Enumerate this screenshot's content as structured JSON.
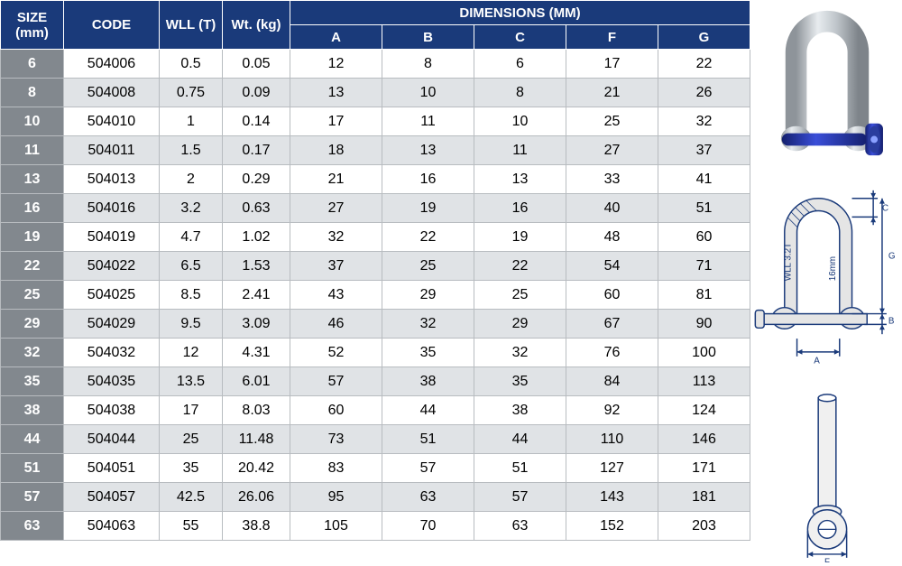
{
  "colors": {
    "header_bg": "#1a3a7a",
    "header_fg": "#ffffff",
    "sizecol_bg": "#82888e",
    "sizecol_fg": "#ffffff",
    "row_even_bg": "#e0e3e6",
    "row_odd_bg": "#ffffff",
    "border": "#b8bcc0",
    "diagram_line": "#1a3a7a",
    "pin_blue": "#2a3d9e",
    "metal": "#bfc5ca",
    "metal_hi": "#e8ecef"
  },
  "table": {
    "headers": {
      "size": "SIZE (mm)",
      "code": "CODE",
      "wll": "WLL (T)",
      "wt": "Wt. (kg)",
      "dimensions": "DIMENSIONS (MM)",
      "dims": [
        "A",
        "B",
        "C",
        "F",
        "G"
      ]
    },
    "rows": [
      {
        "size": "6",
        "code": "504006",
        "wll": "0.5",
        "wt": "0.05",
        "A": "12",
        "B": "8",
        "C": "6",
        "F": "17",
        "G": "22"
      },
      {
        "size": "8",
        "code": "504008",
        "wll": "0.75",
        "wt": "0.09",
        "A": "13",
        "B": "10",
        "C": "8",
        "F": "21",
        "G": "26"
      },
      {
        "size": "10",
        "code": "504010",
        "wll": "1",
        "wt": "0.14",
        "A": "17",
        "B": "11",
        "C": "10",
        "F": "25",
        "G": "32"
      },
      {
        "size": "11",
        "code": "504011",
        "wll": "1.5",
        "wt": "0.17",
        "A": "18",
        "B": "13",
        "C": "11",
        "F": "27",
        "G": "37"
      },
      {
        "size": "13",
        "code": "504013",
        "wll": "2",
        "wt": "0.29",
        "A": "21",
        "B": "16",
        "C": "13",
        "F": "33",
        "G": "41"
      },
      {
        "size": "16",
        "code": "504016",
        "wll": "3.2",
        "wt": "0.63",
        "A": "27",
        "B": "19",
        "C": "16",
        "F": "40",
        "G": "51"
      },
      {
        "size": "19",
        "code": "504019",
        "wll": "4.7",
        "wt": "1.02",
        "A": "32",
        "B": "22",
        "C": "19",
        "F": "48",
        "G": "60"
      },
      {
        "size": "22",
        "code": "504022",
        "wll": "6.5",
        "wt": "1.53",
        "A": "37",
        "B": "25",
        "C": "22",
        "F": "54",
        "G": "71"
      },
      {
        "size": "25",
        "code": "504025",
        "wll": "8.5",
        "wt": "2.41",
        "A": "43",
        "B": "29",
        "C": "25",
        "F": "60",
        "G": "81"
      },
      {
        "size": "29",
        "code": "504029",
        "wll": "9.5",
        "wt": "3.09",
        "A": "46",
        "B": "32",
        "C": "29",
        "F": "67",
        "G": "90"
      },
      {
        "size": "32",
        "code": "504032",
        "wll": "12",
        "wt": "4.31",
        "A": "52",
        "B": "35",
        "C": "32",
        "F": "76",
        "G": "100"
      },
      {
        "size": "35",
        "code": "504035",
        "wll": "13.5",
        "wt": "6.01",
        "A": "57",
        "B": "38",
        "C": "35",
        "F": "84",
        "G": "113"
      },
      {
        "size": "38",
        "code": "504038",
        "wll": "17",
        "wt": "8.03",
        "A": "60",
        "B": "44",
        "C": "38",
        "F": "92",
        "G": "124"
      },
      {
        "size": "44",
        "code": "504044",
        "wll": "25",
        "wt": "11.48",
        "A": "73",
        "B": "51",
        "C": "44",
        "F": "110",
        "G": "146"
      },
      {
        "size": "51",
        "code": "504051",
        "wll": "35",
        "wt": "20.42",
        "A": "83",
        "B": "57",
        "C": "51",
        "F": "127",
        "G": "171"
      },
      {
        "size": "57",
        "code": "504057",
        "wll": "42.5",
        "wt": "26.06",
        "A": "95",
        "B": "63",
        "C": "57",
        "F": "143",
        "G": "181"
      },
      {
        "size": "63",
        "code": "504063",
        "wll": "55",
        "wt": "38.8",
        "A": "105",
        "B": "70",
        "C": "63",
        "F": "152",
        "G": "203"
      }
    ]
  },
  "diagram": {
    "labels": {
      "A": "A",
      "B": "B",
      "C": "C",
      "F": "F",
      "G": "G"
    },
    "body_text_wll": "WLL 3.2T",
    "body_text_size": "16mm"
  }
}
